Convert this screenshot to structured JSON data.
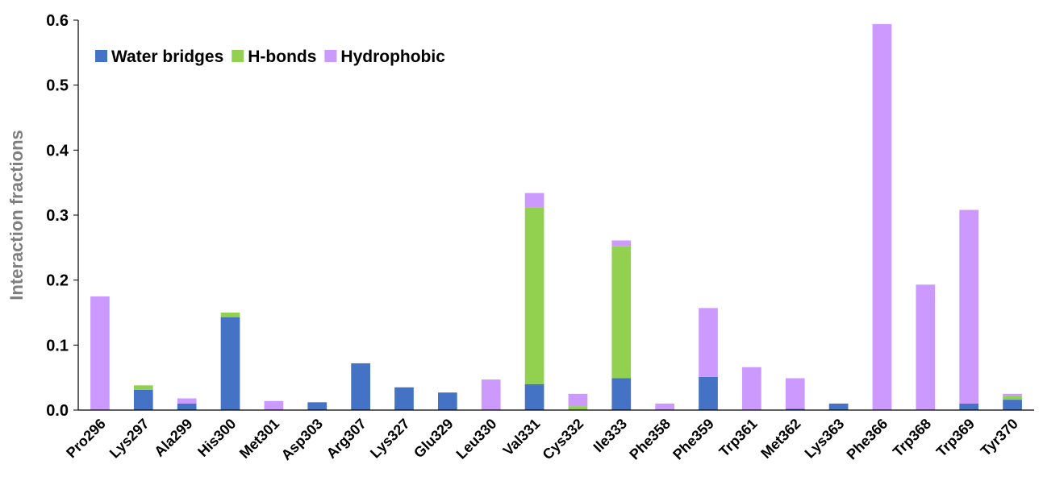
{
  "chart_data": {
    "type": "bar",
    "stacked": true,
    "y_label": "Interaction fractions",
    "categories": [
      "Pro296",
      "Lys297",
      "Ala299",
      "His300",
      "Met301",
      "Asp303",
      "Arg307",
      "Lys327",
      "Glu329",
      "Leu330",
      "Val331",
      "Cys332",
      "Ile333",
      "Phe358",
      "Phe359",
      "Trp361",
      "Met362",
      "Lys363",
      "Phe366",
      "Trp368",
      "Trp369",
      "Tyr370"
    ],
    "series": [
      {
        "name": "Water bridges",
        "color": "#4472c4",
        "values": [
          0,
          0.031,
          0.01,
          0.143,
          0,
          0.012,
          0.072,
          0.035,
          0.027,
          0,
          0.04,
          0,
          0.049,
          0,
          0.051,
          0,
          0.002,
          0.01,
          0,
          0,
          0.01,
          0.016
        ]
      },
      {
        "name": "H-bonds",
        "color": "#92d050",
        "values": [
          0,
          0.007,
          0,
          0.007,
          0,
          0,
          0,
          0,
          0,
          0,
          0.272,
          0.006,
          0.203,
          0,
          0,
          0,
          0,
          0,
          0,
          0,
          0,
          0.006
        ]
      },
      {
        "name": "Hydrophobic",
        "color": "#cc99ff",
        "values": [
          0.175,
          0,
          0.008,
          0,
          0.014,
          0,
          0,
          0,
          0,
          0.047,
          0.022,
          0.019,
          0.009,
          0.01,
          0.106,
          0.066,
          0.047,
          0,
          0.594,
          0.193,
          0.298,
          0.003
        ]
      }
    ],
    "ylim": [
      0,
      0.6
    ],
    "yticks": [
      {
        "value": 0,
        "label": "0.0"
      },
      0.1,
      0.2,
      0.3,
      0.4,
      0.5,
      0.6
    ],
    "legend": "upper left"
  }
}
